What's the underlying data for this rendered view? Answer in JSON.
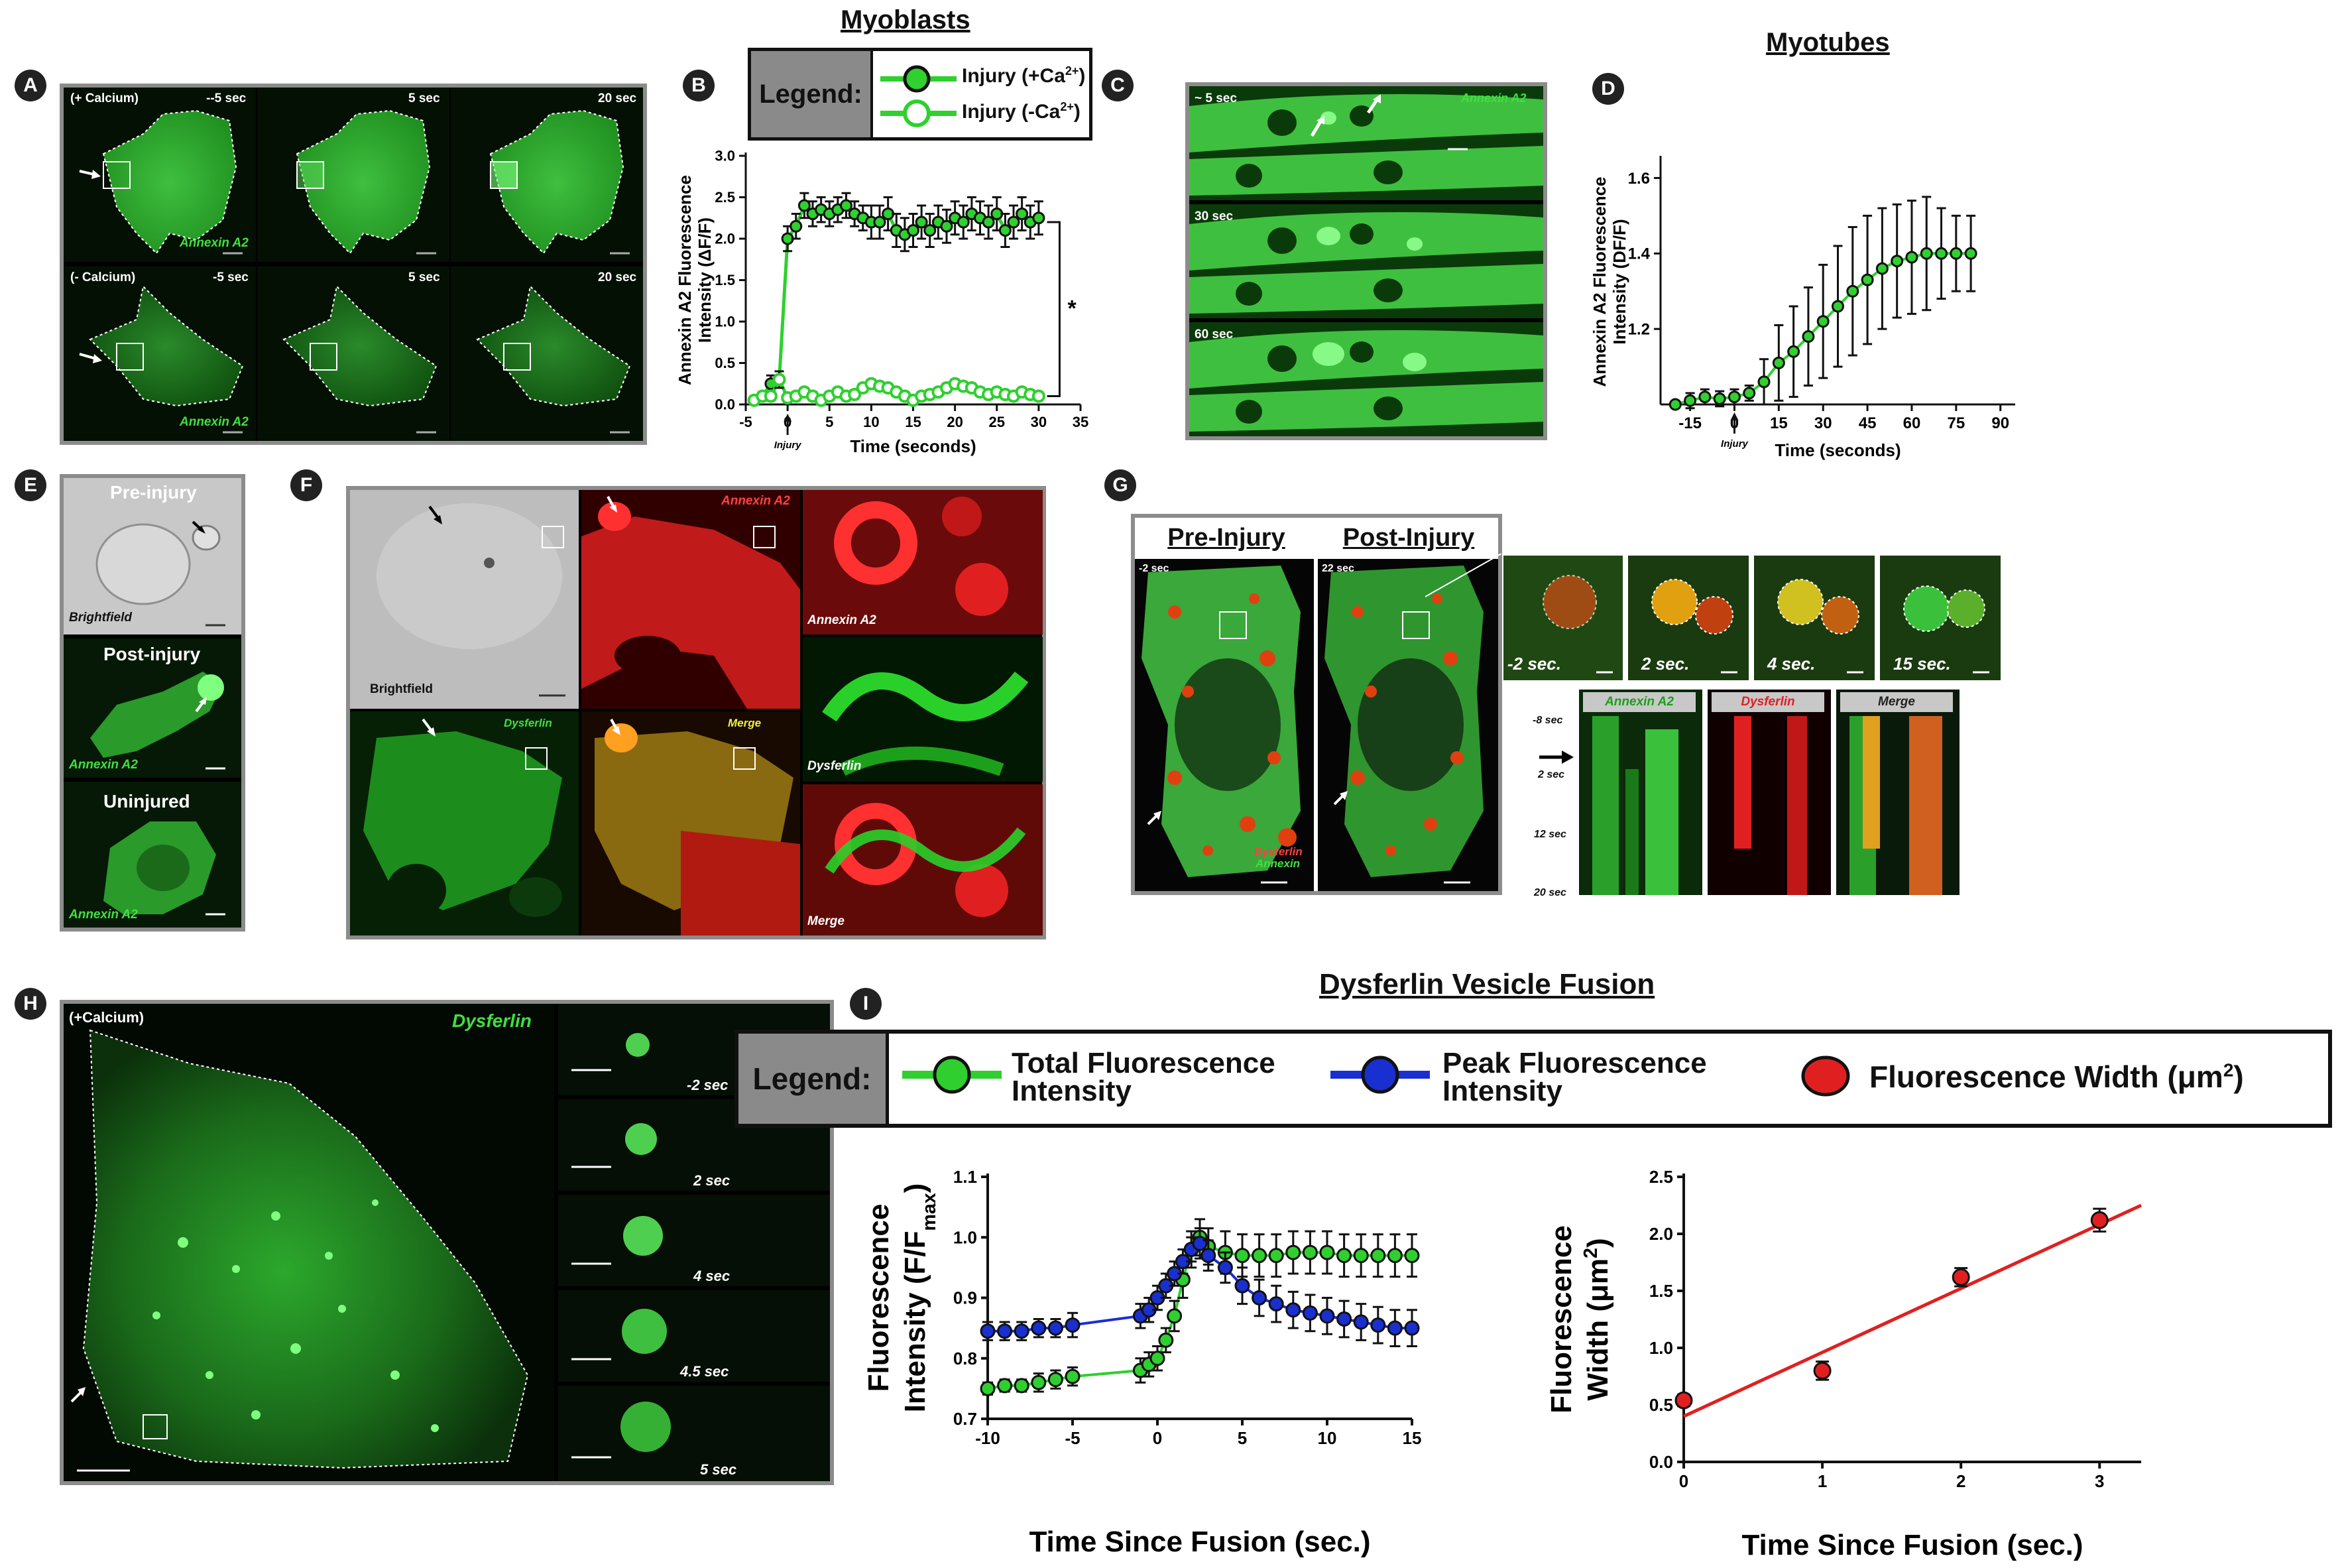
{
  "titles": {
    "myoblasts": "Myoblasts",
    "myotubes": "Myotubes",
    "dysferlin_fusion": "Dysferlin Vesicle Fusion"
  },
  "panel_letters": {
    "A": "A",
    "B": "B",
    "C": "C",
    "D": "D",
    "E": "E",
    "F": "F",
    "G": "G",
    "H": "H",
    "I": "I"
  },
  "panelA": {
    "row1": {
      "condition": "(+ Calcium)",
      "times": [
        "--5 sec",
        "5 sec",
        "20 sec"
      ]
    },
    "row2": {
      "condition": "(- Calcium)",
      "times": [
        "-5 sec",
        "5 sec",
        "20 sec"
      ]
    },
    "marker": "Annexin A2"
  },
  "panelB_legend": {
    "head": "Legend:",
    "item1": "Injury (+Ca",
    "item2": "Injury (-Ca",
    "sup": "2+",
    "close": ")"
  },
  "panelC": {
    "times": [
      "~ 5 sec",
      "30 sec",
      "60 sec"
    ],
    "marker": "Annexin A2"
  },
  "panelE": {
    "pre": "Pre-injury",
    "bf": "Brightfield",
    "post": "Post-injury",
    "marker1": "Annexin A2",
    "unin": "Uninjured",
    "marker2": "Annexin A2"
  },
  "panelF": {
    "bf": "Brightfield",
    "annexin": "Annexin A2",
    "dysferlin": "Dysferlin",
    "merge": "Merge",
    "z_annexin": "Annexin A2",
    "z_dysferlin": "Dysferlin",
    "z_merge": "Merge"
  },
  "panelG": {
    "pre": "Pre-Injury",
    "post": "Post-Injury",
    "t_pre": "-2 sec",
    "t_post": "22 sec",
    "dys": "Dysferlin",
    "ann": "Annexin",
    "zoom_times": [
      "-2 sec.",
      "2 sec.",
      "4 sec.",
      "15 sec."
    ],
    "kymo_heads": [
      "Annexin A2",
      "Dysferlin",
      "Merge"
    ],
    "kymo_times": [
      "-8 sec",
      "2 sec",
      "12 sec",
      "20 sec"
    ]
  },
  "panelH": {
    "condition": "(+Calcium)",
    "marker": "Dysferlin",
    "times": [
      "-2 sec",
      "2 sec",
      "4 sec",
      "4.5 sec",
      "5 sec"
    ]
  },
  "panelI_legend": {
    "head": "Legend:",
    "item1_line1": "Total Fluorescence",
    "item1_line2": "Intensity",
    "item2_line1": "Peak Fluorescence",
    "item2_line2": "Intensity",
    "item3": "Fluorescence Width (μm",
    "item3_sup": "2",
    "item3_close": ")"
  },
  "chart_data": [
    {
      "id": "B",
      "type": "line",
      "xlabel": "Time (seconds)",
      "ylabel_line1": "Annexin A2 Fluorescence",
      "ylabel_line2": "Intensity (ΔF/F)",
      "xlim": [
        -5,
        35
      ],
      "ylim": [
        0,
        3.0
      ],
      "xticks": [
        -5,
        0,
        5,
        10,
        15,
        20,
        25,
        30,
        35
      ],
      "yticks": [
        0,
        0.5,
        1.0,
        1.5,
        2.0,
        2.5,
        3.0
      ],
      "ytick_labels": [
        "0.0",
        "0.5",
        "1.0",
        "1.5",
        "2.0",
        "2.5",
        "3.0"
      ],
      "annotation": "Injury",
      "significance": "*",
      "series": [
        {
          "name": "Injury (+Ca2+)",
          "filled": true,
          "x": [
            -4,
            -3,
            -2,
            -1,
            0,
            1,
            2,
            3,
            4,
            5,
            6,
            7,
            8,
            9,
            10,
            11,
            12,
            13,
            14,
            15,
            16,
            17,
            18,
            19,
            20,
            21,
            22,
            23,
            24,
            25,
            26,
            27,
            28,
            29,
            30
          ],
          "y": [
            0.05,
            0.1,
            0.25,
            0.3,
            2.0,
            2.15,
            2.4,
            2.3,
            2.35,
            2.3,
            2.35,
            2.4,
            2.3,
            2.25,
            2.2,
            2.2,
            2.3,
            2.1,
            2.05,
            2.1,
            2.2,
            2.1,
            2.2,
            2.15,
            2.25,
            2.2,
            2.3,
            2.25,
            2.2,
            2.3,
            2.1,
            2.2,
            2.3,
            2.2,
            2.25
          ],
          "err": [
            0.05,
            0.05,
            0.1,
            0.1,
            0.15,
            0.15,
            0.15,
            0.15,
            0.15,
            0.15,
            0.15,
            0.15,
            0.15,
            0.15,
            0.2,
            0.2,
            0.2,
            0.2,
            0.2,
            0.2,
            0.2,
            0.2,
            0.2,
            0.2,
            0.2,
            0.2,
            0.2,
            0.2,
            0.2,
            0.2,
            0.2,
            0.2,
            0.2,
            0.2,
            0.2
          ]
        },
        {
          "name": "Injury (-Ca2+)",
          "filled": false,
          "x": [
            -4,
            -3,
            -2,
            -1,
            0,
            1,
            2,
            3,
            4,
            5,
            6,
            7,
            8,
            9,
            10,
            11,
            12,
            13,
            14,
            15,
            16,
            17,
            18,
            19,
            20,
            21,
            22,
            23,
            24,
            25,
            26,
            27,
            28,
            29,
            30
          ],
          "y": [
            0.05,
            0.1,
            0.1,
            0.3,
            0.08,
            0.1,
            0.15,
            0.1,
            0.05,
            0.1,
            0.15,
            0.1,
            0.12,
            0.2,
            0.25,
            0.22,
            0.2,
            0.15,
            0.1,
            0.05,
            0.1,
            0.12,
            0.15,
            0.2,
            0.25,
            0.22,
            0.2,
            0.15,
            0.12,
            0.15,
            0.12,
            0.1,
            0.15,
            0.12,
            0.1
          ],
          "err": [
            0.05,
            0.05,
            0.05,
            0.1,
            0.05,
            0.05,
            0.05,
            0.05,
            0.05,
            0.05,
            0.05,
            0.05,
            0.05,
            0.05,
            0.05,
            0.05,
            0.05,
            0.05,
            0.05,
            0.05,
            0.05,
            0.05,
            0.05,
            0.05,
            0.05,
            0.05,
            0.05,
            0.05,
            0.05,
            0.05,
            0.05,
            0.05,
            0.05,
            0.05,
            0.05
          ]
        }
      ]
    },
    {
      "id": "D",
      "type": "line",
      "xlabel": "Time (seconds)",
      "ylabel_line1": "Annexin A2 Fluorescence",
      "ylabel_line2": "Intensity (DF/F)",
      "xlim": [
        -25,
        95
      ],
      "ylim": [
        1.0,
        1.65
      ],
      "xticks": [
        -15,
        0,
        15,
        30,
        45,
        60,
        75,
        90
      ],
      "yticks": [
        1.2,
        1.4,
        1.6
      ],
      "ytick_labels": [
        "1.2",
        "1.4",
        "1.6"
      ],
      "annotation": "Injury",
      "series": [
        {
          "name": "Annexin A2",
          "x": [
            -20,
            -15,
            -10,
            -5,
            0,
            5,
            10,
            15,
            20,
            25,
            30,
            35,
            40,
            45,
            50,
            55,
            60,
            65,
            70,
            75,
            80
          ],
          "y": [
            1.0,
            1.01,
            1.02,
            1.015,
            1.02,
            1.03,
            1.06,
            1.11,
            1.14,
            1.18,
            1.22,
            1.26,
            1.3,
            1.33,
            1.36,
            1.38,
            1.39,
            1.4,
            1.4,
            1.4,
            1.4
          ],
          "err": [
            0.0,
            0.02,
            0.02,
            0.02,
            0.02,
            0.02,
            0.06,
            0.1,
            0.12,
            0.13,
            0.15,
            0.16,
            0.17,
            0.17,
            0.16,
            0.15,
            0.15,
            0.15,
            0.12,
            0.1,
            0.1
          ]
        }
      ]
    },
    {
      "id": "I-left",
      "type": "line",
      "xlabel": "Time Since Fusion (sec.)",
      "ylabel_line1": "Fluorescence",
      "ylabel_line2": "Intensity (F/F",
      "ylabel_sub": "max",
      "ylabel_close": ")",
      "xlim": [
        -10,
        15
      ],
      "ylim": [
        0.7,
        1.1
      ],
      "xticks": [
        -10,
        -5,
        0,
        5,
        10,
        15
      ],
      "yticks": [
        0.7,
        0.8,
        0.9,
        1.0,
        1.1
      ],
      "ytick_labels": [
        "0.7",
        "0.8",
        "0.9",
        "1.0",
        "1.1"
      ],
      "series": [
        {
          "name": "Total Fluorescence Intensity",
          "color": "#2fcf2f",
          "x": [
            -10,
            -9,
            -8,
            -7,
            -6,
            -5,
            -1,
            -0.5,
            0,
            0.5,
            1,
            1.5,
            2,
            2.5,
            3,
            4,
            5,
            6,
            7,
            8,
            9,
            10,
            11,
            12,
            13,
            14,
            15
          ],
          "y": [
            0.75,
            0.755,
            0.755,
            0.76,
            0.765,
            0.77,
            0.78,
            0.79,
            0.8,
            0.83,
            0.87,
            0.93,
            0.98,
            1.0,
            0.985,
            0.975,
            0.97,
            0.97,
            0.97,
            0.975,
            0.975,
            0.975,
            0.97,
            0.97,
            0.97,
            0.97,
            0.97
          ],
          "err": [
            0.01,
            0.01,
            0.01,
            0.015,
            0.015,
            0.015,
            0.02,
            0.02,
            0.02,
            0.02,
            0.025,
            0.03,
            0.03,
            0.03,
            0.03,
            0.035,
            0.035,
            0.035,
            0.035,
            0.035,
            0.035,
            0.035,
            0.035,
            0.035,
            0.035,
            0.035,
            0.035
          ]
        },
        {
          "name": "Peak Fluorescence Intensity",
          "color": "#1a2fd0",
          "x": [
            -10,
            -9,
            -8,
            -7,
            -6,
            -5,
            -1,
            -0.5,
            0,
            0.5,
            1,
            1.5,
            2,
            2.5,
            3,
            4,
            5,
            6,
            7,
            8,
            9,
            10,
            11,
            12,
            13,
            14,
            15
          ],
          "y": [
            0.845,
            0.845,
            0.845,
            0.85,
            0.85,
            0.855,
            0.87,
            0.88,
            0.9,
            0.92,
            0.94,
            0.96,
            0.98,
            0.99,
            0.97,
            0.95,
            0.92,
            0.9,
            0.89,
            0.88,
            0.875,
            0.87,
            0.865,
            0.86,
            0.855,
            0.85,
            0.85
          ],
          "err": [
            0.015,
            0.015,
            0.015,
            0.015,
            0.015,
            0.02,
            0.02,
            0.02,
            0.02,
            0.02,
            0.02,
            0.02,
            0.02,
            0.025,
            0.025,
            0.025,
            0.03,
            0.03,
            0.03,
            0.03,
            0.03,
            0.03,
            0.03,
            0.03,
            0.03,
            0.03,
            0.03
          ]
        }
      ]
    },
    {
      "id": "I-right",
      "type": "scatter",
      "xlabel": "Time Since Fusion (sec.)",
      "ylabel_line1": "Fluorescence",
      "ylabel_line2": "Width (μm",
      "ylabel_sup": "2",
      "ylabel_close": ")",
      "xlim": [
        0,
        3.3
      ],
      "ylim": [
        0,
        2.5
      ],
      "xticks": [
        0,
        1,
        2,
        3
      ],
      "yticks": [
        0,
        0.5,
        1.0,
        1.5,
        2.0,
        2.5
      ],
      "ytick_labels": [
        "0.0",
        "0.5",
        "1.0",
        "1.5",
        "2.0",
        "2.5"
      ],
      "series": [
        {
          "name": "Fluorescence Width",
          "color": "#e02020",
          "x": [
            0,
            1,
            2,
            3
          ],
          "y": [
            0.54,
            0.8,
            1.62,
            2.12
          ],
          "err": [
            0.05,
            0.08,
            0.08,
            0.1
          ]
        }
      ],
      "fit": {
        "x0": 0,
        "y0": 0.4,
        "x1": 3.3,
        "y1": 2.25
      }
    }
  ]
}
